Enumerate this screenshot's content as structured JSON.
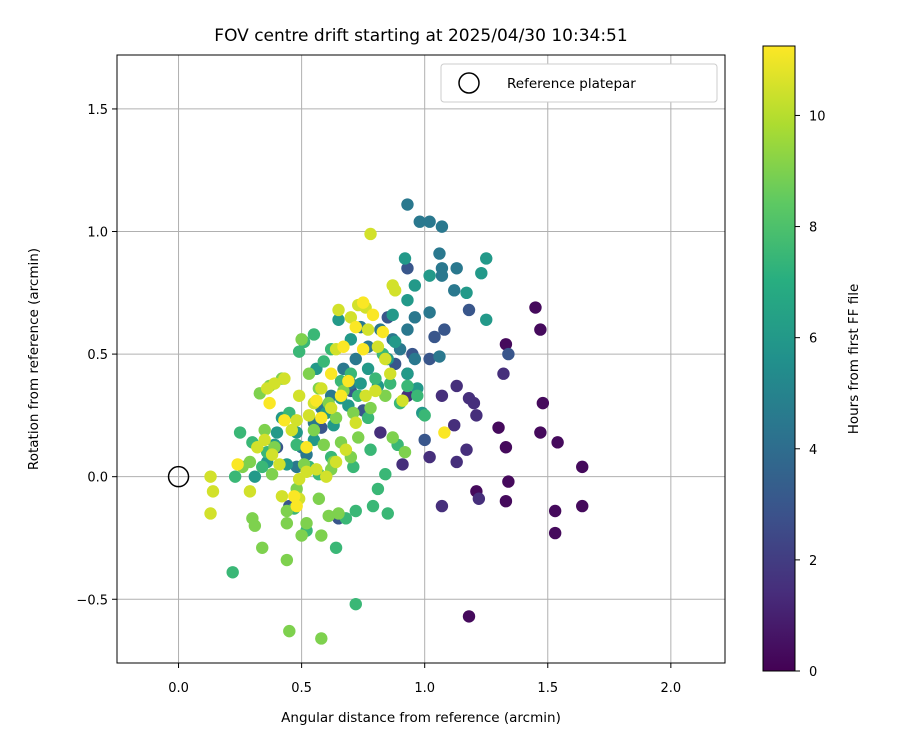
{
  "chart_data": {
    "type": "scatter",
    "title": "FOV centre drift starting at 2025/04/30 10:34:51",
    "xlabel": "Angular distance from reference (arcmin)",
    "ylabel": "Rotation from reference (arcmin)",
    "xlim": [
      -0.25,
      2.22
    ],
    "ylim": [
      -0.76,
      1.72
    ],
    "x_ticks": [
      0.0,
      0.5,
      1.0,
      1.5,
      2.0
    ],
    "x_tick_labels": [
      "0.0",
      "0.5",
      "1.0",
      "1.5",
      "2.0"
    ],
    "y_ticks": [
      -0.5,
      0.0,
      0.5,
      1.0,
      1.5
    ],
    "y_tick_labels": [
      "−0.5",
      "0.0",
      "0.5",
      "1.0",
      "1.5"
    ],
    "grid": true,
    "legend": {
      "position": "top-right",
      "entries": [
        "Reference platepar"
      ]
    },
    "reference_point": {
      "x": 0.0,
      "y": 0.0,
      "label": "Reference platepar"
    },
    "colorbar": {
      "label": "Hours from first FF file",
      "colormap": "viridis",
      "min": 0,
      "max": 11.25,
      "ticks": [
        0,
        2,
        4,
        6,
        8,
        10
      ],
      "tick_labels": [
        "0",
        "2",
        "4",
        "6",
        "8",
        "10"
      ]
    },
    "series": [
      {
        "c": 0.3,
        "points": [
          [
            1.45,
            0.69
          ],
          [
            1.47,
            0.6
          ],
          [
            1.33,
            0.54
          ],
          [
            1.48,
            0.3
          ],
          [
            1.47,
            0.18
          ],
          [
            1.54,
            0.14
          ],
          [
            1.33,
            0.12
          ],
          [
            1.64,
            0.04
          ],
          [
            1.34,
            -0.02
          ],
          [
            1.53,
            -0.14
          ],
          [
            1.64,
            -0.12
          ],
          [
            1.53,
            -0.23
          ],
          [
            1.33,
            -0.1
          ],
          [
            1.21,
            -0.06
          ],
          [
            1.18,
            -0.57
          ],
          [
            1.3,
            0.2
          ]
        ]
      },
      {
        "c": 1.5,
        "points": [
          [
            1.32,
            0.42
          ],
          [
            1.18,
            0.32
          ],
          [
            1.21,
            0.25
          ],
          [
            1.13,
            0.37
          ],
          [
            1.12,
            0.21
          ],
          [
            1.17,
            0.11
          ],
          [
            1.13,
            0.06
          ],
          [
            1.02,
            0.08
          ],
          [
            1.07,
            -0.12
          ],
          [
            1.22,
            -0.09
          ],
          [
            0.91,
            0.05
          ],
          [
            0.93,
            0.33
          ],
          [
            1.07,
            0.33
          ],
          [
            1.2,
            0.3
          ],
          [
            0.93,
            0.42
          ],
          [
            0.82,
            0.18
          ]
        ]
      },
      {
        "c": 3.0,
        "points": [
          [
            1.18,
            0.68
          ],
          [
            1.08,
            0.6
          ],
          [
            1.04,
            0.57
          ],
          [
            1.02,
            0.48
          ],
          [
            0.95,
            0.5
          ],
          [
            0.88,
            0.46
          ],
          [
            1.0,
            0.15
          ],
          [
            0.65,
            -0.17
          ],
          [
            0.75,
            0.27
          ],
          [
            0.85,
            0.65
          ],
          [
            0.93,
            0.85
          ],
          [
            0.58,
            0.2
          ],
          [
            0.7,
            0.35
          ],
          [
            1.34,
            0.5
          ],
          [
            0.4,
            0.12
          ],
          [
            0.45,
            -0.12
          ]
        ]
      },
      {
        "c": 4.5,
        "points": [
          [
            0.93,
            1.11
          ],
          [
            0.98,
            1.04
          ],
          [
            1.02,
            1.04
          ],
          [
            1.07,
            1.02
          ],
          [
            1.06,
            0.91
          ],
          [
            1.13,
            0.85
          ],
          [
            1.07,
            0.85
          ],
          [
            1.07,
            0.82
          ],
          [
            1.12,
            0.76
          ],
          [
            1.02,
            0.67
          ],
          [
            0.96,
            0.65
          ],
          [
            0.93,
            0.6
          ],
          [
            0.87,
            0.56
          ],
          [
            0.82,
            0.6
          ],
          [
            0.77,
            0.53
          ],
          [
            0.74,
            0.61
          ],
          [
            0.72,
            0.48
          ],
          [
            0.7,
            0.38
          ],
          [
            0.67,
            0.44
          ],
          [
            0.62,
            0.33
          ],
          [
            0.58,
            0.28
          ],
          [
            0.55,
            0.22
          ],
          [
            0.5,
            0.12
          ],
          [
            1.06,
            0.49
          ],
          [
            0.96,
            0.48
          ],
          [
            0.9,
            0.52
          ],
          [
            0.52,
            0.09
          ],
          [
            0.48,
            0.04
          ]
        ]
      },
      {
        "c": 6.0,
        "points": [
          [
            1.25,
            0.89
          ],
          [
            1.23,
            0.83
          ],
          [
            1.17,
            0.75
          ],
          [
            1.25,
            0.64
          ],
          [
            1.02,
            0.82
          ],
          [
            0.92,
            0.89
          ],
          [
            0.96,
            0.78
          ],
          [
            0.93,
            0.72
          ],
          [
            0.87,
            0.66
          ],
          [
            0.97,
            0.36
          ],
          [
            0.85,
            0.48
          ],
          [
            0.77,
            0.44
          ],
          [
            0.74,
            0.38
          ],
          [
            0.81,
            0.37
          ],
          [
            0.66,
            0.32
          ],
          [
            0.69,
            0.29
          ],
          [
            0.6,
            0.26
          ],
          [
            0.63,
            0.21
          ],
          [
            0.55,
            0.15
          ],
          [
            0.42,
            0.24
          ],
          [
            0.48,
            0.18
          ],
          [
            0.39,
            0.13
          ],
          [
            0.44,
            0.05
          ],
          [
            0.36,
            0.06
          ],
          [
            0.31,
            0.0
          ],
          [
            0.65,
            0.64
          ],
          [
            0.7,
            0.56
          ],
          [
            0.88,
            0.55
          ],
          [
            0.93,
            0.42
          ],
          [
            0.99,
            0.26
          ],
          [
            0.56,
            0.44
          ],
          [
            0.4,
            0.18
          ]
        ]
      },
      {
        "c": 7.5,
        "points": [
          [
            0.22,
            -0.39
          ],
          [
            0.72,
            -0.52
          ],
          [
            0.64,
            -0.29
          ],
          [
            0.47,
            -0.13
          ],
          [
            0.72,
            -0.14
          ],
          [
            0.79,
            -0.12
          ],
          [
            0.81,
            -0.05
          ],
          [
            0.84,
            0.01
          ],
          [
            0.71,
            0.04
          ],
          [
            0.78,
            0.11
          ],
          [
            0.53,
            0.04
          ],
          [
            0.57,
            0.01
          ],
          [
            0.62,
            0.08
          ],
          [
            0.34,
            0.04
          ],
          [
            0.25,
            0.18
          ],
          [
            0.23,
            0.0
          ],
          [
            0.48,
            0.13
          ],
          [
            0.45,
            0.26
          ],
          [
            0.49,
            0.51
          ],
          [
            0.51,
            0.55
          ],
          [
            0.55,
            0.58
          ],
          [
            0.59,
            0.47
          ],
          [
            0.62,
            0.52
          ],
          [
            0.66,
            0.39
          ],
          [
            0.7,
            0.42
          ],
          [
            0.73,
            0.33
          ],
          [
            0.77,
            0.24
          ],
          [
            0.8,
            0.4
          ],
          [
            0.83,
            0.5
          ],
          [
            0.86,
            0.38
          ],
          [
            0.9,
            0.3
          ],
          [
            0.93,
            0.37
          ],
          [
            0.97,
            0.33
          ],
          [
            1.0,
            0.25
          ],
          [
            0.89,
            0.13
          ],
          [
            0.68,
            -0.17
          ],
          [
            0.85,
            -0.15
          ],
          [
            0.52,
            -0.22
          ],
          [
            0.36,
            0.1
          ],
          [
            0.3,
            0.14
          ]
        ]
      },
      {
        "c": 9.0,
        "points": [
          [
            0.45,
            -0.63
          ],
          [
            0.58,
            -0.66
          ],
          [
            0.58,
            -0.24
          ],
          [
            0.44,
            -0.34
          ],
          [
            0.34,
            -0.29
          ],
          [
            0.31,
            -0.2
          ],
          [
            0.3,
            -0.17
          ],
          [
            0.44,
            -0.19
          ],
          [
            0.5,
            -0.24
          ],
          [
            0.52,
            -0.19
          ],
          [
            0.61,
            -0.16
          ],
          [
            0.65,
            -0.15
          ],
          [
            0.44,
            -0.14
          ],
          [
            0.48,
            -0.05
          ],
          [
            0.38,
            0.01
          ],
          [
            0.51,
            0.05
          ],
          [
            0.57,
            -0.09
          ],
          [
            0.62,
            0.03
          ],
          [
            0.33,
            0.34
          ],
          [
            0.37,
            0.37
          ],
          [
            0.42,
            0.4
          ],
          [
            0.5,
            0.56
          ],
          [
            0.53,
            0.42
          ],
          [
            0.57,
            0.36
          ],
          [
            0.61,
            0.3
          ],
          [
            0.64,
            0.24
          ],
          [
            0.67,
            0.35
          ],
          [
            0.71,
            0.26
          ],
          [
            0.73,
            0.16
          ],
          [
            0.78,
            0.28
          ],
          [
            0.84,
            0.33
          ],
          [
            0.87,
            0.16
          ],
          [
            0.92,
            0.1
          ],
          [
            0.55,
            0.19
          ],
          [
            0.59,
            0.13
          ],
          [
            0.63,
            0.06
          ],
          [
            0.66,
            0.14
          ],
          [
            0.7,
            0.08
          ],
          [
            0.29,
            0.06
          ],
          [
            0.26,
            0.04
          ],
          [
            0.35,
            0.19
          ],
          [
            0.39,
            0.12
          ]
        ]
      },
      {
        "c": 10.5,
        "points": [
          [
            0.13,
            0.0
          ],
          [
            0.14,
            -0.06
          ],
          [
            0.13,
            -0.15
          ],
          [
            0.29,
            -0.06
          ],
          [
            0.42,
            -0.08
          ],
          [
            0.49,
            -0.09
          ],
          [
            0.49,
            -0.01
          ],
          [
            0.52,
            0.02
          ],
          [
            0.46,
            0.19
          ],
          [
            0.48,
            0.23
          ],
          [
            0.49,
            0.33
          ],
          [
            0.53,
            0.25
          ],
          [
            0.55,
            0.3
          ],
          [
            0.58,
            0.36
          ],
          [
            0.62,
            0.28
          ],
          [
            0.64,
            0.52
          ],
          [
            0.65,
            0.68
          ],
          [
            0.7,
            0.65
          ],
          [
            0.73,
            0.7
          ],
          [
            0.76,
            0.69
          ],
          [
            0.77,
            0.6
          ],
          [
            0.81,
            0.53
          ],
          [
            0.84,
            0.48
          ],
          [
            0.87,
            0.78
          ],
          [
            0.88,
            0.76
          ],
          [
            0.78,
            0.99
          ],
          [
            0.43,
            0.4
          ],
          [
            0.39,
            0.38
          ],
          [
            0.36,
            0.36
          ],
          [
            0.35,
            0.15
          ],
          [
            0.32,
            0.12
          ],
          [
            0.38,
            0.09
          ],
          [
            0.41,
            0.05
          ],
          [
            0.56,
            0.03
          ],
          [
            0.6,
            0.0
          ],
          [
            0.64,
            0.06
          ],
          [
            0.68,
            0.11
          ],
          [
            0.72,
            0.22
          ],
          [
            0.76,
            0.33
          ],
          [
            0.8,
            0.35
          ],
          [
            0.86,
            0.42
          ],
          [
            0.91,
            0.31
          ]
        ]
      },
      {
        "c": 11.2,
        "points": [
          [
            0.24,
            0.05
          ],
          [
            0.43,
            0.23
          ],
          [
            0.47,
            -0.08
          ],
          [
            0.56,
            0.31
          ],
          [
            0.62,
            0.42
          ],
          [
            0.67,
            0.53
          ],
          [
            0.72,
            0.61
          ],
          [
            0.75,
            0.71
          ],
          [
            0.79,
            0.66
          ],
          [
            0.83,
            0.59
          ],
          [
            1.08,
            0.18
          ],
          [
            0.75,
            0.52
          ],
          [
            0.66,
            0.33
          ],
          [
            0.58,
            0.24
          ],
          [
            0.52,
            0.12
          ],
          [
            0.48,
            -0.12
          ],
          [
            0.37,
            0.3
          ],
          [
            0.69,
            0.39
          ]
        ]
      }
    ]
  }
}
